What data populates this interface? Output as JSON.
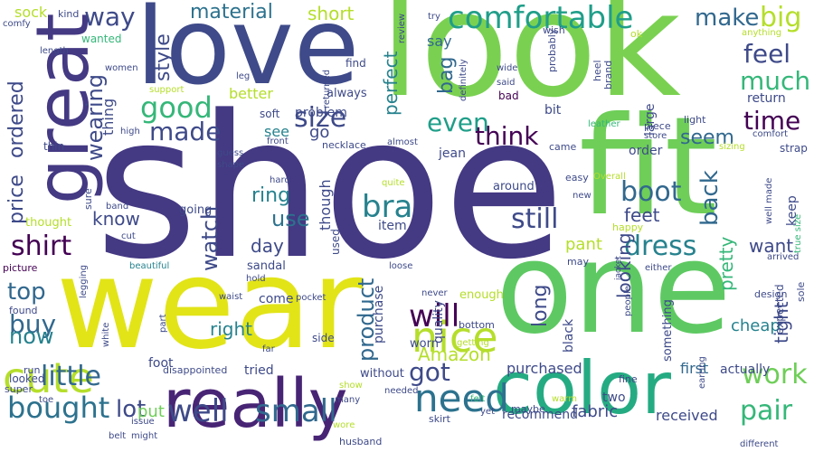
{
  "colors": {
    "background": "#ffffff",
    "palette": [
      "#440154",
      "#3e4a89",
      "#31688e",
      "#26828e",
      "#1f9e89",
      "#35b779",
      "#6ece58",
      "#b5de2b",
      "#fde725"
    ]
  },
  "words": {
    "shoe": "shoe",
    "look": "look",
    "fit": "fit",
    "love": "love",
    "one": "one",
    "wear": "wear",
    "great": "great",
    "color": "color",
    "really": "really",
    "cute": "cute",
    "comfortable": "comfortable",
    "nice": "nice",
    "bought": "bought",
    "need": "need",
    "well": "well",
    "small": "small",
    "little": "little",
    "bra": "bra",
    "boot": "boot",
    "dress": "dress",
    "will": "will",
    "size": "size",
    "good": "good",
    "made": "made",
    "way": "way",
    "material": "material",
    "short": "short",
    "big": "big",
    "make": "make",
    "feel": "feel",
    "much": "much",
    "time": "time",
    "wearing": "wearing",
    "style": "style",
    "even": "even",
    "think": "think",
    "shirt": "shirt",
    "price": "price",
    "ordered": "ordered",
    "perfect": "perfect",
    "bag": "bag",
    "watch": "watch",
    "still": "still",
    "back": "back",
    "pretty": "pretty",
    "top": "top",
    "buy": "buy",
    "pair": "pair",
    "work": "work",
    "got": "got",
    "product": "product",
    "Amazon": "Amazon",
    "lot": "lot",
    "now": "now",
    "use": "use",
    "know": "know",
    "feet": "feet",
    "seem": "seem",
    "want": "want",
    "pant": "pant",
    "long": "long",
    "looking": "looking",
    "tight": "tight",
    "ring": "ring",
    "day": "day",
    "right": "right",
    "cheap": "cheap",
    "purchased": "purchased",
    "first": "first",
    "put": "put",
    "fabric": "fabric",
    "received": "received",
    "recommend": "recommend",
    "sock": "sock",
    "say": "say",
    "better": "better",
    "problem": "problem",
    "go": "go",
    "see": "see",
    "soft": "soft",
    "always": "always",
    "thing": "thing",
    "though": "though",
    "quality": "quality",
    "item": "item",
    "jean": "jean",
    "order": "order",
    "purchase": "purchase",
    "black": "black",
    "keep": "keep",
    "return": "return",
    "come": "come",
    "tried": "tried",
    "without": "without",
    "two": "two",
    "sandal": "sandal",
    "foot": "foot",
    "used": "used",
    "worn": "worn",
    "enough": "enough",
    "around": "around",
    "going": "going",
    "thought": "thought",
    "cute2": "cute",
    "actually": "actually",
    "something": "something",
    "bit": "bit",
    "large": "large",
    "strap": "strap",
    "light": "light",
    "kind": "kind",
    "try": "try",
    "wish": "wish",
    "ok": "ok",
    "anything": "anything",
    "comfy": "comfy",
    "length": "length",
    "women": "women",
    "wanted": "wanted",
    "support": "support",
    "leg": "leg",
    "returned": "returned",
    "find": "find",
    "review": "review",
    "probably": "probably",
    "definitely": "definitely",
    "said": "said",
    "wide": "wide",
    "bad": "bad",
    "heel": "heel",
    "brand": "brand",
    "leather": "leather",
    "piece": "piece",
    "store": "store",
    "comfort": "comfort",
    "sizing": "sizing",
    "high": "high",
    "front": "front",
    "necklace": "necklace",
    "almost": "almost",
    "came": "came",
    "thin": "thin",
    "guess": "guess",
    "shape": "shape",
    "hard": "hard",
    "quite": "quite",
    "easy": "easy",
    "Overall": "Overall",
    "new": "new",
    "band": "band",
    "sure": "sure",
    "happy": "happy",
    "well_made": "well made",
    "true_size": "true size",
    "cut": "cut",
    "picture": "picture",
    "legging": "legging",
    "beautiful": "beautiful",
    "hold": "hold",
    "loose": "loose",
    "may": "may",
    "either": "either",
    "jacket": "jacket",
    "arrived": "arrived",
    "design": "design",
    "expected": "expected",
    "sole": "sole",
    "waist": "waist",
    "pocket": "pocket",
    "part": "part",
    "never": "never",
    "bottom": "bottom",
    "people": "people",
    "found": "found",
    "white": "white",
    "side": "side",
    "getting": "getting",
    "far": "far",
    "disappointed": "disappointed",
    "run": "run",
    "looked": "looked",
    "super": "super",
    "show": "show",
    "toe": "toe",
    "many": "many",
    "needed": "needed",
    "felt": "felt",
    "warm": "warm",
    "fine": "fine",
    "earring": "earring",
    "issue": "issue",
    "might": "might",
    "wore": "wore",
    "yet": "yet",
    "maybe": "maybe",
    "skirt": "skirt",
    "husband": "husband",
    "belt": "belt",
    "different": "different"
  }
}
